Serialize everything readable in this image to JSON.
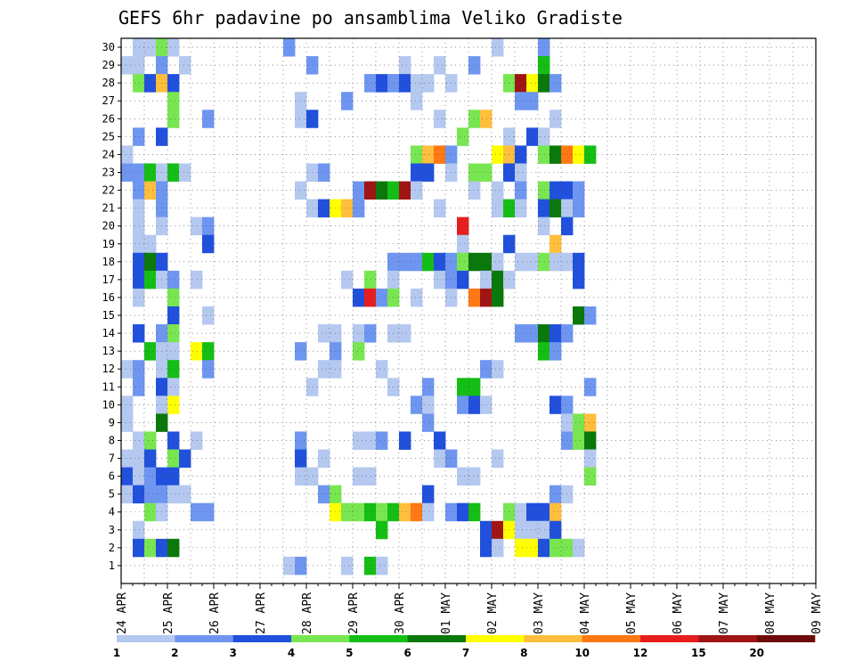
{
  "chart_data": {
    "type": "heatmap",
    "title": "GEFS 6hr padavine po ansamblima Veliko Gradiste",
    "xlabel": "",
    "ylabel": "",
    "x_tick_labels": [
      "24 APR",
      "25 APR",
      "26 APR",
      "27 APR",
      "28 APR",
      "29 APR",
      "30 APR",
      "01 MAY",
      "02 MAY",
      "03 MAY",
      "04 MAY",
      "05 MAY",
      "06 MAY",
      "07 MAY",
      "08 MAY",
      "09 MAY"
    ],
    "x_steps_per_day": 4,
    "y_range": [
      1,
      30
    ],
    "y_tick_labels": [
      "1",
      "2",
      "3",
      "4",
      "5",
      "6",
      "7",
      "8",
      "9",
      "10",
      "11",
      "12",
      "13",
      "14",
      "15",
      "16",
      "17",
      "18",
      "19",
      "20",
      "21",
      "22",
      "23",
      "24",
      "25",
      "26",
      "27",
      "28",
      "29",
      "30"
    ],
    "grid": true,
    "legend": {
      "position": "bottom",
      "colors": [
        "#b4c8f0",
        "#6e96f0",
        "#2050dc",
        "#78e650",
        "#14be14",
        "#0a780a",
        "#ffff00",
        "#ffbe3c",
        "#ff7814",
        "#e61e1e",
        "#a01414",
        "#6e0a0a"
      ],
      "labels": [
        "1",
        "2",
        "3",
        "4",
        "5",
        "6",
        "7",
        "8",
        "10",
        "12",
        "15",
        "20"
      ]
    },
    "units": "mm",
    "cells": [
      [
        1,
        30,
        1.5
      ],
      [
        2,
        30,
        1.5
      ],
      [
        3,
        30,
        4.5
      ],
      [
        4,
        30,
        1.5
      ],
      [
        14,
        30,
        2.5
      ],
      [
        32,
        30,
        1.5
      ],
      [
        36,
        30,
        2.5
      ],
      [
        0,
        29,
        1.5
      ],
      [
        1,
        29,
        1.5
      ],
      [
        3,
        29,
        2.5
      ],
      [
        5,
        29,
        1.5
      ],
      [
        16,
        29,
        2.5
      ],
      [
        24,
        29,
        1.5
      ],
      [
        27,
        29,
        1.5
      ],
      [
        30,
        29,
        2.5
      ],
      [
        36,
        29,
        5.5
      ],
      [
        1,
        28,
        4.5
      ],
      [
        2,
        28,
        3.5
      ],
      [
        3,
        28,
        9
      ],
      [
        4,
        28,
        3.5
      ],
      [
        21,
        28,
        2.5
      ],
      [
        22,
        28,
        3.5
      ],
      [
        23,
        28,
        2.5
      ],
      [
        24,
        28,
        3.5
      ],
      [
        25,
        28,
        1.5
      ],
      [
        26,
        28,
        1.5
      ],
      [
        28,
        28,
        1.5
      ],
      [
        33,
        28,
        4.5
      ],
      [
        34,
        28,
        17
      ],
      [
        35,
        28,
        7.5
      ],
      [
        36,
        28,
        6.5
      ],
      [
        37,
        28,
        2.5
      ],
      [
        4,
        27,
        4.5
      ],
      [
        15,
        27,
        1.5
      ],
      [
        19,
        27,
        2.5
      ],
      [
        25,
        27,
        1.5
      ],
      [
        34,
        27,
        2.5
      ],
      [
        35,
        27,
        2.5
      ],
      [
        4,
        26,
        4.5
      ],
      [
        7,
        26,
        2.5
      ],
      [
        15,
        26,
        1.5
      ],
      [
        16,
        26,
        3.5
      ],
      [
        27,
        26,
        1.5
      ],
      [
        30,
        26,
        4.5
      ],
      [
        31,
        26,
        8
      ],
      [
        37,
        26,
        1.5
      ],
      [
        1,
        25,
        2.5
      ],
      [
        3,
        25,
        3.5
      ],
      [
        29,
        25,
        4.5
      ],
      [
        33,
        25,
        1.5
      ],
      [
        35,
        25,
        3.5
      ],
      [
        36,
        25,
        1.5
      ],
      [
        0,
        24,
        1.5
      ],
      [
        25,
        24,
        4.5
      ],
      [
        26,
        24,
        8
      ],
      [
        27,
        24,
        10
      ],
      [
        28,
        24,
        2.5
      ],
      [
        32,
        24,
        7.5
      ],
      [
        33,
        24,
        8
      ],
      [
        34,
        24,
        3.5
      ],
      [
        36,
        24,
        4.5
      ],
      [
        37,
        24,
        6.5
      ],
      [
        38,
        24,
        10
      ],
      [
        39,
        24,
        7.5
      ],
      [
        40,
        24,
        5.5
      ],
      [
        0,
        23,
        2.5
      ],
      [
        1,
        23,
        2.5
      ],
      [
        2,
        23,
        5.5
      ],
      [
        3,
        23,
        1.5
      ],
      [
        4,
        23,
        5.5
      ],
      [
        5,
        23,
        1.5
      ],
      [
        16,
        23,
        1.5
      ],
      [
        17,
        23,
        2.5
      ],
      [
        25,
        23,
        3.5
      ],
      [
        26,
        23,
        3.5
      ],
      [
        28,
        23,
        1.5
      ],
      [
        30,
        23,
        4.5
      ],
      [
        31,
        23,
        4.5
      ],
      [
        33,
        23,
        3.5
      ],
      [
        34,
        23,
        1.5
      ],
      [
        1,
        22,
        2.5
      ],
      [
        2,
        22,
        9
      ],
      [
        3,
        22,
        2.5
      ],
      [
        15,
        22,
        1.5
      ],
      [
        20,
        22,
        2.5
      ],
      [
        21,
        22,
        17
      ],
      [
        22,
        22,
        6.5
      ],
      [
        23,
        22,
        5.5
      ],
      [
        24,
        22,
        17
      ],
      [
        25,
        22,
        1.5
      ],
      [
        30,
        22,
        1.5
      ],
      [
        32,
        22,
        1.5
      ],
      [
        34,
        22,
        2.5
      ],
      [
        36,
        22,
        4.5
      ],
      [
        37,
        22,
        3.5
      ],
      [
        38,
        22,
        3.5
      ],
      [
        39,
        22,
        2.5
      ],
      [
        1,
        21,
        1.5
      ],
      [
        3,
        21,
        2.5
      ],
      [
        16,
        21,
        1.5
      ],
      [
        17,
        21,
        3.5
      ],
      [
        18,
        21,
        7.5
      ],
      [
        19,
        21,
        9
      ],
      [
        20,
        21,
        2.5
      ],
      [
        27,
        21,
        1.5
      ],
      [
        32,
        21,
        1.5
      ],
      [
        33,
        21,
        5.5
      ],
      [
        34,
        21,
        1.5
      ],
      [
        36,
        21,
        3.5
      ],
      [
        37,
        21,
        6.5
      ],
      [
        38,
        21,
        1.5
      ],
      [
        39,
        21,
        2.5
      ],
      [
        1,
        20,
        1.5
      ],
      [
        3,
        20,
        1.5
      ],
      [
        6,
        20,
        1.5
      ],
      [
        7,
        20,
        2.5
      ],
      [
        29,
        20,
        13
      ],
      [
        36,
        20,
        1.5
      ],
      [
        38,
        20,
        3.5
      ],
      [
        1,
        19,
        1.5
      ],
      [
        2,
        19,
        1.5
      ],
      [
        7,
        19,
        3.5
      ],
      [
        29,
        19,
        1.5
      ],
      [
        33,
        19,
        3.5
      ],
      [
        37,
        19,
        9
      ],
      [
        1,
        18,
        3.5
      ],
      [
        2,
        18,
        6.5
      ],
      [
        3,
        18,
        3.5
      ],
      [
        23,
        18,
        2.5
      ],
      [
        24,
        18,
        2.5
      ],
      [
        25,
        18,
        2.5
      ],
      [
        26,
        18,
        5.5
      ],
      [
        27,
        18,
        3.5
      ],
      [
        28,
        18,
        2.5
      ],
      [
        29,
        18,
        4.5
      ],
      [
        30,
        18,
        6.5
      ],
      [
        31,
        18,
        6.5
      ],
      [
        32,
        18,
        1.5
      ],
      [
        34,
        18,
        1.5
      ],
      [
        35,
        18,
        1.5
      ],
      [
        36,
        18,
        4.5
      ],
      [
        37,
        18,
        1.5
      ],
      [
        38,
        18,
        1.5
      ],
      [
        39,
        18,
        3.5
      ],
      [
        1,
        17,
        3.5
      ],
      [
        2,
        17,
        5.5
      ],
      [
        3,
        17,
        1.5
      ],
      [
        4,
        17,
        2.5
      ],
      [
        6,
        17,
        1.5
      ],
      [
        19,
        17,
        1.5
      ],
      [
        21,
        17,
        4.5
      ],
      [
        23,
        17,
        1.5
      ],
      [
        27,
        17,
        1.5
      ],
      [
        28,
        17,
        2.5
      ],
      [
        29,
        17,
        3.5
      ],
      [
        31,
        17,
        1.5
      ],
      [
        32,
        17,
        6.5
      ],
      [
        33,
        17,
        1.5
      ],
      [
        39,
        17,
        3.5
      ],
      [
        1,
        16,
        1.5
      ],
      [
        4,
        16,
        4.5
      ],
      [
        20,
        16,
        3.5
      ],
      [
        21,
        16,
        13
      ],
      [
        22,
        16,
        2.5
      ],
      [
        23,
        16,
        4.5
      ],
      [
        25,
        16,
        1.5
      ],
      [
        28,
        16,
        1.5
      ],
      [
        30,
        16,
        10
      ],
      [
        31,
        16,
        15
      ],
      [
        32,
        16,
        6.5
      ],
      [
        4,
        15,
        3.5
      ],
      [
        7,
        15,
        1.5
      ],
      [
        39,
        15,
        6.5
      ],
      [
        40,
        15,
        2.5
      ],
      [
        1,
        14,
        3.5
      ],
      [
        3,
        14,
        2.5
      ],
      [
        4,
        14,
        4.5
      ],
      [
        17,
        14,
        1.5
      ],
      [
        18,
        14,
        1.5
      ],
      [
        20,
        14,
        1.5
      ],
      [
        21,
        14,
        2.5
      ],
      [
        23,
        14,
        1.5
      ],
      [
        24,
        14,
        1.5
      ],
      [
        34,
        14,
        2.5
      ],
      [
        35,
        14,
        2.5
      ],
      [
        36,
        14,
        6.5
      ],
      [
        37,
        14,
        3.5
      ],
      [
        38,
        14,
        2.5
      ],
      [
        2,
        13,
        5.5
      ],
      [
        3,
        13,
        1.5
      ],
      [
        4,
        13,
        1.5
      ],
      [
        6,
        13,
        7.5
      ],
      [
        7,
        13,
        5.5
      ],
      [
        15,
        13,
        2.5
      ],
      [
        18,
        13,
        2.5
      ],
      [
        20,
        13,
        4.5
      ],
      [
        36,
        13,
        5.5
      ],
      [
        37,
        13,
        2.5
      ],
      [
        0,
        12,
        1.5
      ],
      [
        1,
        12,
        2.5
      ],
      [
        3,
        12,
        1.5
      ],
      [
        4,
        12,
        5.5
      ],
      [
        7,
        12,
        2.5
      ],
      [
        17,
        12,
        1.5
      ],
      [
        18,
        12,
        1.5
      ],
      [
        22,
        12,
        1.5
      ],
      [
        31,
        12,
        2.5
      ],
      [
        32,
        12,
        1.5
      ],
      [
        1,
        11,
        2.5
      ],
      [
        3,
        11,
        3.5
      ],
      [
        4,
        11,
        1.5
      ],
      [
        16,
        11,
        1.5
      ],
      [
        23,
        11,
        1.5
      ],
      [
        26,
        11,
        2.5
      ],
      [
        29,
        11,
        5.5
      ],
      [
        30,
        11,
        5.5
      ],
      [
        40,
        11,
        2.5
      ],
      [
        0,
        10,
        1.5
      ],
      [
        3,
        10,
        1.5
      ],
      [
        4,
        10,
        7.5
      ],
      [
        25,
        10,
        2.5
      ],
      [
        26,
        10,
        1.5
      ],
      [
        29,
        10,
        2.5
      ],
      [
        30,
        10,
        3.5
      ],
      [
        31,
        10,
        1.5
      ],
      [
        37,
        10,
        3.5
      ],
      [
        38,
        10,
        2.5
      ],
      [
        0,
        9,
        1.5
      ],
      [
        3,
        9,
        6.5
      ],
      [
        26,
        9,
        2.5
      ],
      [
        38,
        9,
        1.5
      ],
      [
        39,
        9,
        4.5
      ],
      [
        40,
        9,
        8
      ],
      [
        1,
        8,
        1.5
      ],
      [
        2,
        8,
        4.5
      ],
      [
        4,
        8,
        3.5
      ],
      [
        6,
        8,
        1.5
      ],
      [
        15,
        8,
        2.5
      ],
      [
        20,
        8,
        1.5
      ],
      [
        21,
        8,
        1.5
      ],
      [
        22,
        8,
        2.5
      ],
      [
        24,
        8,
        3.5
      ],
      [
        27,
        8,
        3.5
      ],
      [
        38,
        8,
        2.5
      ],
      [
        39,
        8,
        4.5
      ],
      [
        40,
        8,
        6.5
      ],
      [
        0,
        7,
        1.5
      ],
      [
        1,
        7,
        1.5
      ],
      [
        2,
        7,
        3.5
      ],
      [
        4,
        7,
        4.5
      ],
      [
        5,
        7,
        3.5
      ],
      [
        15,
        7,
        3.5
      ],
      [
        17,
        7,
        1.5
      ],
      [
        27,
        7,
        1.5
      ],
      [
        28,
        7,
        2.5
      ],
      [
        32,
        7,
        1.5
      ],
      [
        40,
        7,
        1.5
      ],
      [
        0,
        6,
        3.5
      ],
      [
        1,
        6,
        1.5
      ],
      [
        2,
        6,
        2.5
      ],
      [
        3,
        6,
        3.5
      ],
      [
        4,
        6,
        3.5
      ],
      [
        15,
        6,
        1.5
      ],
      [
        16,
        6,
        1.5
      ],
      [
        20,
        6,
        1.5
      ],
      [
        21,
        6,
        1.5
      ],
      [
        29,
        6,
        1.5
      ],
      [
        30,
        6,
        1.5
      ],
      [
        40,
        6,
        4.5
      ],
      [
        0,
        5,
        1.5
      ],
      [
        1,
        5,
        3.5
      ],
      [
        2,
        5,
        2.5
      ],
      [
        3,
        5,
        2.5
      ],
      [
        4,
        5,
        1.5
      ],
      [
        5,
        5,
        1.5
      ],
      [
        17,
        5,
        2.5
      ],
      [
        18,
        5,
        4.5
      ],
      [
        26,
        5,
        3.5
      ],
      [
        37,
        5,
        2.5
      ],
      [
        38,
        5,
        1.5
      ],
      [
        2,
        4,
        4.5
      ],
      [
        3,
        4,
        1.5
      ],
      [
        6,
        4,
        2.5
      ],
      [
        7,
        4,
        2.5
      ],
      [
        18,
        4,
        7.5
      ],
      [
        19,
        4,
        4.5
      ],
      [
        20,
        4,
        4.5
      ],
      [
        21,
        4,
        5.5
      ],
      [
        22,
        4,
        4.5
      ],
      [
        23,
        4,
        5.5
      ],
      [
        24,
        4,
        9
      ],
      [
        25,
        4,
        11
      ],
      [
        26,
        4,
        1.5
      ],
      [
        28,
        4,
        2.5
      ],
      [
        29,
        4,
        3.5
      ],
      [
        30,
        4,
        5.5
      ],
      [
        33,
        4,
        4.5
      ],
      [
        34,
        4,
        1.5
      ],
      [
        35,
        4,
        3.5
      ],
      [
        36,
        4,
        3.5
      ],
      [
        37,
        4,
        8
      ],
      [
        1,
        3,
        1.5
      ],
      [
        22,
        3,
        5.5
      ],
      [
        31,
        3,
        3.5
      ],
      [
        32,
        3,
        17
      ],
      [
        33,
        3,
        7.5
      ],
      [
        34,
        3,
        1.5
      ],
      [
        35,
        3,
        1.5
      ],
      [
        36,
        3,
        1.5
      ],
      [
        37,
        3,
        3.5
      ],
      [
        1,
        2,
        3.5
      ],
      [
        2,
        2,
        4.5
      ],
      [
        3,
        2,
        3.5
      ],
      [
        4,
        2,
        6.5
      ],
      [
        31,
        2,
        3.5
      ],
      [
        32,
        2,
        1.5
      ],
      [
        34,
        2,
        7.5
      ],
      [
        35,
        2,
        7.5
      ],
      [
        36,
        2,
        3.5
      ],
      [
        37,
        2,
        4.5
      ],
      [
        38,
        2,
        4.5
      ],
      [
        39,
        2,
        1.5
      ],
      [
        14,
        1,
        1.5
      ],
      [
        15,
        1,
        2.5
      ],
      [
        19,
        1,
        1.5
      ],
      [
        21,
        1,
        5.5
      ],
      [
        22,
        1,
        1.5
      ]
    ]
  }
}
